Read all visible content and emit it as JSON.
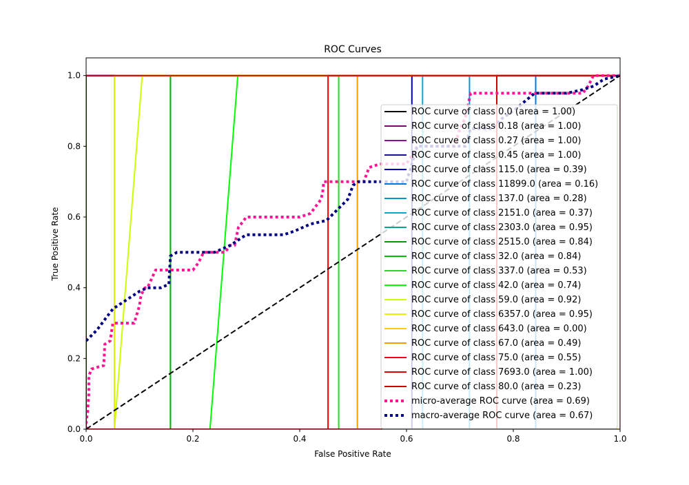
{
  "chart_data": {
    "type": "line",
    "title": "ROC Curves",
    "xlabel": "False Positive Rate",
    "ylabel": "True Positive Rate",
    "xlim": [
      0.0,
      1.0
    ],
    "ylim": [
      0.0,
      1.05
    ],
    "x_ticks": [
      "0.0",
      "0.2",
      "0.4",
      "0.6",
      "0.8",
      "1.0"
    ],
    "y_ticks": [
      "0.0",
      "0.2",
      "0.4",
      "0.6",
      "0.8",
      "1.0"
    ],
    "grid": false,
    "legend_position": "lower-right",
    "series": [
      {
        "name": "ROC curve of class 0.0 (area = 1.00)",
        "color": "#000000",
        "style": "solid",
        "x": [
          0,
          0,
          1
        ],
        "y": [
          0,
          1,
          1
        ]
      },
      {
        "name": "ROC curve of class 0.18 (area = 1.00)",
        "color": "#7e007e",
        "style": "solid",
        "x": [
          0,
          0,
          1
        ],
        "y": [
          0,
          1,
          1
        ]
      },
      {
        "name": "ROC curve of class 0.27 (area = 1.00)",
        "color": "#8b0d9a",
        "style": "solid",
        "x": [
          0,
          0,
          1
        ],
        "y": [
          0,
          1,
          1
        ]
      },
      {
        "name": "ROC curve of class 0.45 (area = 1.00)",
        "color": "#1a0d9e",
        "style": "solid",
        "x": [
          0,
          0,
          1
        ],
        "y": [
          0,
          1,
          1
        ]
      },
      {
        "name": "ROC curve of class 115.0 (area = 0.39)",
        "color": "#0000cc",
        "style": "solid",
        "x": [
          0,
          0.61,
          0.61,
          1
        ],
        "y": [
          0,
          0,
          1,
          1
        ]
      },
      {
        "name": "ROC curve of class 11899.0 (area = 0.16)",
        "color": "#0077dd",
        "style": "solid",
        "x": [
          0,
          0.842,
          0.842,
          1
        ],
        "y": [
          0,
          0,
          1,
          1
        ]
      },
      {
        "name": "ROC curve of class 137.0 (area = 0.28)",
        "color": "#0099cc",
        "style": "solid",
        "x": [
          0,
          0.718,
          0.718,
          1
        ],
        "y": [
          0,
          0,
          1,
          1
        ]
      },
      {
        "name": "ROC curve of class 2151.0 (area = 0.37)",
        "color": "#00aacc",
        "style": "solid",
        "x": [
          0,
          0.63,
          0.63,
          1
        ],
        "y": [
          0,
          0,
          1,
          1
        ]
      },
      {
        "name": "ROC curve of class 2303.0 (area = 0.95)",
        "color": "#00aa88",
        "style": "solid",
        "x": [
          0,
          0.053,
          0.053,
          1
        ],
        "y": [
          0,
          0,
          1,
          1
        ]
      },
      {
        "name": "ROC curve of class 2515.0 (area = 0.84)",
        "color": "#009900",
        "style": "solid",
        "x": [
          0,
          0.158,
          0.158,
          1
        ],
        "y": [
          0,
          0,
          1,
          1
        ]
      },
      {
        "name": "ROC curve of class 32.0 (area = 0.84)",
        "color": "#00bb00",
        "style": "solid",
        "x": [
          0,
          0.158,
          0.158,
          1
        ],
        "y": [
          0,
          0,
          1,
          1
        ]
      },
      {
        "name": "ROC curve of class 337.0 (area = 0.53)",
        "color": "#22dd22",
        "style": "solid",
        "x": [
          0,
          0.473,
          0.473,
          1
        ],
        "y": [
          0,
          0,
          1,
          1
        ]
      },
      {
        "name": "ROC curve of class 42.0 (area = 0.74)",
        "color": "#00ff00",
        "style": "solid",
        "x": [
          0,
          0.232,
          0.284,
          1
        ],
        "y": [
          0,
          0,
          1,
          1
        ]
      },
      {
        "name": "ROC curve of class 59.0 (area = 0.92)",
        "color": "#ccff00",
        "style": "solid",
        "x": [
          0,
          0.053,
          0.105,
          1
        ],
        "y": [
          0,
          0,
          1,
          1
        ]
      },
      {
        "name": "ROC curve of class 6357.0 (area = 0.95)",
        "color": "#eeee00",
        "style": "solid",
        "x": [
          0,
          0.053,
          0.053,
          1
        ],
        "y": [
          0,
          0,
          1,
          1
        ]
      },
      {
        "name": "ROC curve of class 643.0 (area = 0.00)",
        "color": "#ffcc00",
        "style": "solid",
        "x": [
          0,
          1,
          1
        ],
        "y": [
          0,
          0,
          1
        ]
      },
      {
        "name": "ROC curve of class 67.0 (area = 0.49)",
        "color": "#ff9900",
        "style": "solid",
        "x": [
          0,
          0.508,
          0.508,
          1
        ],
        "y": [
          0,
          0,
          1,
          1
        ]
      },
      {
        "name": "ROC curve of class 75.0 (area = 0.55)",
        "color": "#ff0000",
        "style": "solid",
        "x": [
          0,
          0.453,
          0.453,
          1
        ],
        "y": [
          0,
          0,
          1,
          1
        ]
      },
      {
        "name": "ROC curve of class 7693.0 (area = 1.00)",
        "color": "#dd0000",
        "style": "solid",
        "x": [
          0,
          0,
          1
        ],
        "y": [
          0,
          1,
          1
        ]
      },
      {
        "name": "ROC curve of class 80.0 (area = 0.23)",
        "color": "#cc0000",
        "style": "solid",
        "x": [
          0,
          0.769,
          0.769,
          1
        ],
        "y": [
          0,
          0,
          1,
          1
        ]
      },
      {
        "name": "micro-average ROC curve (area = 0.69)",
        "color": "#ff1493",
        "style": "dotted",
        "x": [
          0,
          0,
          0.003,
          0.005,
          0.005,
          0.01,
          0.02,
          0.033,
          0.035,
          0.045,
          0.05,
          0.06,
          0.07,
          0.09,
          0.1,
          0.103,
          0.11,
          0.115,
          0.13,
          0.155,
          0.2,
          0.21,
          0.22,
          0.26,
          0.27,
          0.278,
          0.285,
          0.29,
          0.3,
          0.32,
          0.4,
          0.42,
          0.43,
          0.44,
          0.443,
          0.445,
          0.52,
          0.53,
          0.55,
          0.6,
          0.62,
          0.69,
          0.7,
          0.71,
          0.72,
          0.73,
          0.75,
          0.77,
          0.84,
          0.86,
          0.88,
          0.93,
          0.94,
          0.95,
          0.96,
          1.0
        ],
        "y": [
          0,
          0.02,
          0.05,
          0.1,
          0.15,
          0.17,
          0.175,
          0.18,
          0.24,
          0.25,
          0.3,
          0.3,
          0.3,
          0.3,
          0.35,
          0.38,
          0.4,
          0.4,
          0.45,
          0.45,
          0.45,
          0.47,
          0.5,
          0.5,
          0.52,
          0.52,
          0.57,
          0.58,
          0.6,
          0.6,
          0.6,
          0.61,
          0.63,
          0.65,
          0.67,
          0.7,
          0.7,
          0.74,
          0.75,
          0.75,
          0.8,
          0.8,
          0.85,
          0.88,
          0.95,
          0.95,
          0.95,
          0.95,
          0.95,
          0.95,
          0.95,
          0.95,
          0.97,
          1.0,
          1.0,
          1.0
        ]
      },
      {
        "name": "macro-average ROC curve (area = 0.67)",
        "color": "#000080",
        "style": "dotted",
        "x": [
          0,
          0.02,
          0.04,
          0.05,
          0.06,
          0.09,
          0.1,
          0.115,
          0.14,
          0.155,
          0.158,
          0.17,
          0.23,
          0.24,
          0.27,
          0.28,
          0.3,
          0.37,
          0.39,
          0.42,
          0.45,
          0.47,
          0.49,
          0.5,
          0.51,
          0.55,
          0.6,
          0.61,
          0.62,
          0.63,
          0.66,
          0.7,
          0.71,
          0.72,
          0.76,
          0.78,
          0.8,
          0.84,
          0.86,
          0.88,
          0.9,
          0.93,
          0.95,
          0.97,
          1.0
        ],
        "y": [
          0.25,
          0.28,
          0.32,
          0.34,
          0.35,
          0.38,
          0.39,
          0.4,
          0.4,
          0.41,
          0.49,
          0.5,
          0.5,
          0.5,
          0.52,
          0.53,
          0.55,
          0.55,
          0.56,
          0.58,
          0.59,
          0.62,
          0.65,
          0.69,
          0.7,
          0.7,
          0.7,
          0.75,
          0.8,
          0.8,
          0.8,
          0.8,
          0.8,
          0.85,
          0.85,
          0.88,
          0.9,
          0.95,
          0.95,
          0.95,
          0.95,
          0.96,
          0.97,
          0.99,
          1.0
        ]
      },
      {
        "name": "",
        "color": "#000000",
        "style": "dashed",
        "legend": false,
        "x": [
          0,
          1
        ],
        "y": [
          0,
          1
        ]
      }
    ]
  }
}
